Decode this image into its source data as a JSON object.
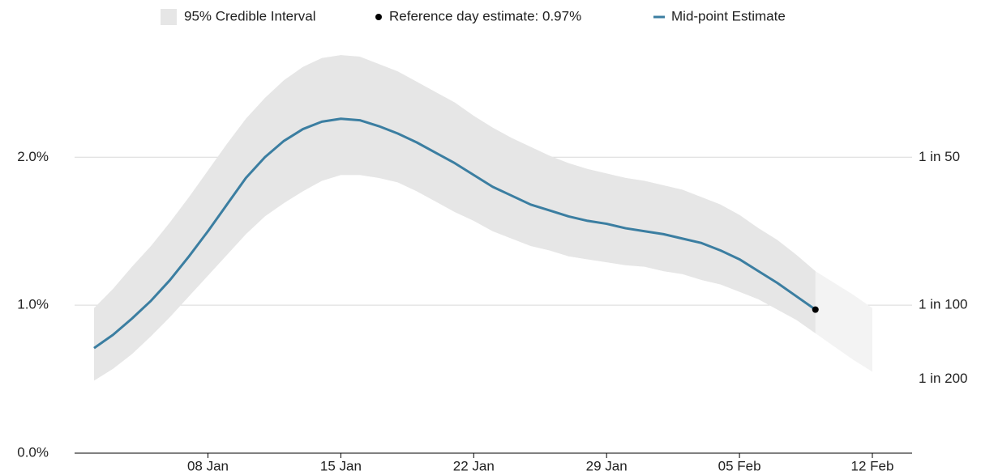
{
  "chart_data": {
    "type": "line",
    "x": [
      "02 Jan",
      "03 Jan",
      "04 Jan",
      "05 Jan",
      "06 Jan",
      "07 Jan",
      "08 Jan",
      "09 Jan",
      "10 Jan",
      "11 Jan",
      "12 Jan",
      "13 Jan",
      "14 Jan",
      "15 Jan",
      "16 Jan",
      "17 Jan",
      "18 Jan",
      "19 Jan",
      "20 Jan",
      "21 Jan",
      "22 Jan",
      "23 Jan",
      "24 Jan",
      "25 Jan",
      "26 Jan",
      "27 Jan",
      "28 Jan",
      "29 Jan",
      "30 Jan",
      "31 Jan",
      "01 Feb",
      "02 Feb",
      "03 Feb",
      "04 Feb",
      "05 Feb",
      "06 Feb",
      "07 Feb",
      "08 Feb",
      "09 Feb",
      "10 Feb",
      "11 Feb",
      "12 Feb"
    ],
    "series": [
      {
        "name": "Mid-point Estimate",
        "color": "#3b7ea1",
        "values": [
          0.71,
          0.8,
          0.91,
          1.03,
          1.17,
          1.33,
          1.5,
          1.68,
          1.86,
          2.0,
          2.11,
          2.19,
          2.24,
          2.26,
          2.25,
          2.21,
          2.16,
          2.1,
          2.03,
          1.96,
          1.88,
          1.8,
          1.74,
          1.68,
          1.64,
          1.6,
          1.57,
          1.55,
          1.52,
          1.5,
          1.48,
          1.45,
          1.42,
          1.37,
          1.31,
          1.23,
          1.15,
          1.06,
          0.97,
          null,
          null,
          null
        ]
      }
    ],
    "band": {
      "name": "95% Credible Interval",
      "color": "#e6e6e6",
      "projection_color": "#f3f3f3",
      "upper": [
        0.98,
        1.11,
        1.26,
        1.4,
        1.56,
        1.73,
        1.91,
        2.09,
        2.26,
        2.4,
        2.52,
        2.61,
        2.67,
        2.69,
        2.68,
        2.63,
        2.58,
        2.51,
        2.44,
        2.37,
        2.28,
        2.2,
        2.13,
        2.07,
        2.01,
        1.96,
        1.92,
        1.89,
        1.86,
        1.84,
        1.81,
        1.78,
        1.73,
        1.68,
        1.61,
        1.52,
        1.44,
        1.34,
        1.23,
        1.15,
        1.07,
        0.98
      ],
      "lower": [
        0.49,
        0.57,
        0.67,
        0.79,
        0.92,
        1.06,
        1.2,
        1.34,
        1.48,
        1.6,
        1.69,
        1.77,
        1.84,
        1.88,
        1.88,
        1.86,
        1.83,
        1.77,
        1.7,
        1.63,
        1.57,
        1.5,
        1.45,
        1.4,
        1.37,
        1.33,
        1.31,
        1.29,
        1.27,
        1.26,
        1.23,
        1.21,
        1.17,
        1.14,
        1.09,
        1.04,
        0.97,
        0.9,
        0.81,
        0.72,
        0.63,
        0.55
      ]
    },
    "reference": {
      "name": "Reference day estimate: 0.97%",
      "x": "09 Feb",
      "value": 0.97,
      "color": "#000000"
    },
    "ylim": [
      0,
      2.8
    ],
    "yticks": [
      {
        "value": 0,
        "label": "0.0%"
      },
      {
        "value": 1,
        "label": "1.0%"
      },
      {
        "value": 2,
        "label": "2.0%"
      }
    ],
    "y2lim": [
      0,
      2.8
    ],
    "y2ticks": [
      {
        "value": 0.5,
        "label": "1 in 200"
      },
      {
        "value": 1,
        "label": "1 in 100"
      },
      {
        "value": 2,
        "label": "1 in 50"
      }
    ],
    "xticks": [
      "08 Jan",
      "15 Jan",
      "22 Jan",
      "29 Jan",
      "05 Feb",
      "12 Feb"
    ],
    "grid": true
  }
}
